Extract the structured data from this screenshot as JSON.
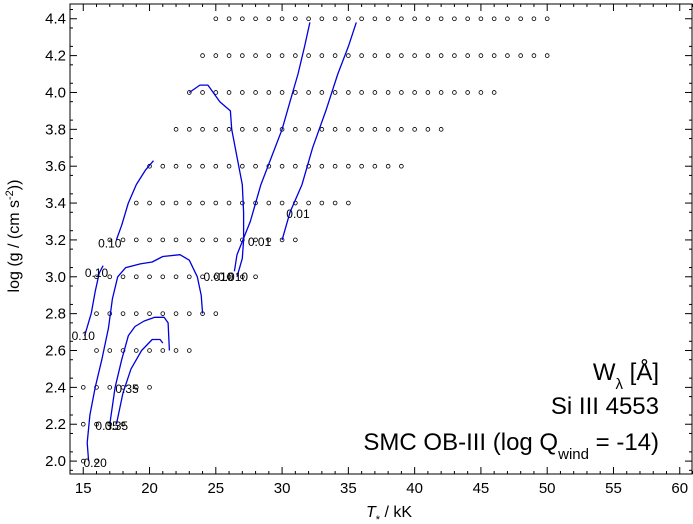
{
  "chart_data": {
    "type": "scatter",
    "xlabel_symbol": "T",
    "xlabel_subscript": "*",
    "xlabel_rest": " / kK",
    "ylabel_main": "log (g / (cm s",
    "ylabel_sup": "-2",
    "ylabel_end": "))",
    "xlim": [
      14,
      61
    ],
    "ylim": [
      1.93,
      4.48
    ],
    "xticks": [
      15,
      20,
      25,
      30,
      35,
      40,
      45,
      50,
      55,
      60
    ],
    "yticks": [
      2.0,
      2.2,
      2.4,
      2.6,
      2.8,
      3.0,
      3.2,
      3.4,
      3.6,
      3.8,
      4.0,
      4.2,
      4.4
    ],
    "grid": false,
    "annotation": {
      "line1_main": "W",
      "line1_sub": "λ",
      "line1_rest": "  [Å]",
      "line2": "Si III 4553",
      "line3_main": "SMC OB-III (log Q",
      "line3_sub": "wind",
      "line3_rest": " = -14)"
    },
    "grid_model_rows": [
      {
        "logg": 4.4,
        "teff": [
          25,
          26,
          27,
          28,
          29,
          30,
          31,
          32,
          33,
          34,
          35,
          36,
          37,
          38,
          39,
          40,
          41,
          42,
          43,
          44,
          45,
          46,
          47,
          48,
          49,
          50
        ]
      },
      {
        "logg": 4.2,
        "teff": [
          24,
          25,
          26,
          27,
          28,
          29,
          30,
          31,
          32,
          33,
          34,
          35,
          36,
          37,
          38,
          39,
          40,
          41,
          42,
          43,
          44,
          45,
          46,
          47,
          48,
          49,
          50
        ]
      },
      {
        "logg": 4.0,
        "teff": [
          23,
          24,
          25,
          26,
          27,
          28,
          29,
          30,
          31,
          32,
          33,
          34,
          35,
          36,
          37,
          38,
          39,
          40,
          41,
          42,
          43,
          44,
          45,
          46
        ]
      },
      {
        "logg": 3.8,
        "teff": [
          22,
          23,
          24,
          25,
          26,
          27,
          28,
          29,
          30,
          31,
          32,
          33,
          34,
          35,
          36,
          37,
          38,
          39,
          40,
          41,
          42
        ]
      },
      {
        "logg": 3.6,
        "teff": [
          20,
          21,
          22,
          23,
          24,
          25,
          26,
          27,
          28,
          29,
          30,
          31,
          32,
          33,
          34,
          35,
          36,
          37,
          38,
          39
        ]
      },
      {
        "logg": 3.4,
        "teff": [
          19,
          20,
          21,
          22,
          23,
          24,
          25,
          26,
          27,
          28,
          29,
          30,
          31,
          32,
          33,
          34,
          35
        ]
      },
      {
        "logg": 3.2,
        "teff": [
          17,
          18,
          19,
          20,
          21,
          22,
          23,
          24,
          25,
          26,
          27,
          28,
          29,
          30,
          31
        ]
      },
      {
        "logg": 3.0,
        "teff": [
          16,
          17,
          18,
          19,
          20,
          21,
          22,
          23,
          24,
          25,
          26,
          27,
          28
        ]
      },
      {
        "logg": 2.8,
        "teff": [
          16,
          17,
          18,
          19,
          20,
          21,
          22,
          23,
          24,
          25
        ]
      },
      {
        "logg": 2.6,
        "teff": [
          16,
          17,
          18,
          19,
          20,
          21,
          22,
          23
        ]
      },
      {
        "logg": 2.4,
        "teff": [
          15,
          16,
          17,
          18,
          19,
          20
        ]
      },
      {
        "logg": 2.2,
        "teff": [
          15,
          16,
          17,
          18
        ]
      },
      {
        "logg": 2.0,
        "teff": [
          15,
          16
        ]
      }
    ],
    "contours": [
      {
        "label": "0.01",
        "points": [
          [
            30.0,
            3.2
          ],
          [
            30.6,
            3.35
          ],
          [
            31.5,
            3.5
          ],
          [
            32.3,
            3.7
          ],
          [
            33.3,
            3.9
          ],
          [
            34.2,
            4.1
          ],
          [
            35.0,
            4.25
          ],
          [
            35.6,
            4.38
          ]
        ]
      },
      {
        "label": "0.01",
        "points": [
          [
            26.4,
            3.03
          ],
          [
            26.6,
            3.12
          ],
          [
            27.6,
            3.3
          ],
          [
            28.4,
            3.5
          ],
          [
            29.2,
            3.65
          ],
          [
            30.0,
            3.8
          ],
          [
            30.6,
            3.95
          ],
          [
            31.2,
            4.1
          ],
          [
            31.7,
            4.25
          ],
          [
            32.1,
            4.38
          ]
        ]
      },
      {
        "label": "0.01",
        "points": [
          [
            23.0,
            4.0
          ],
          [
            23.8,
            4.04
          ],
          [
            24.4,
            4.04
          ],
          [
            24.8,
            4.0
          ],
          [
            25.3,
            3.95
          ],
          [
            26.1,
            3.9
          ],
          [
            26.2,
            3.8
          ],
          [
            26.6,
            3.65
          ],
          [
            27.0,
            3.5
          ],
          [
            27.1,
            3.35
          ],
          [
            27.1,
            3.2
          ],
          [
            27.0,
            3.1
          ],
          [
            26.6,
            3.0
          ]
        ]
      },
      {
        "label": "0.10",
        "points": [
          [
            17.5,
            3.2
          ],
          [
            17.9,
            3.28
          ],
          [
            18.4,
            3.4
          ],
          [
            19.0,
            3.5
          ],
          [
            19.7,
            3.58
          ],
          [
            20.3,
            3.63
          ]
        ]
      },
      {
        "label": "0.10",
        "points": [
          [
            15.6,
            2.8
          ],
          [
            15.9,
            2.92
          ],
          [
            16.2,
            3.02
          ],
          [
            16.5,
            3.06
          ]
        ]
      },
      {
        "label": "0.10",
        "points": [
          [
            15.1,
            2.68
          ],
          [
            15.6,
            2.8
          ]
        ]
      },
      {
        "label": "0.20",
        "points": [
          [
            15.4,
            2.0
          ],
          [
            15.3,
            2.1
          ],
          [
            15.5,
            2.25
          ],
          [
            15.9,
            2.4
          ],
          [
            16.4,
            2.55
          ],
          [
            16.9,
            2.72
          ],
          [
            17.2,
            2.88
          ],
          [
            17.6,
            3.0
          ],
          [
            18.2,
            3.05
          ],
          [
            19.3,
            3.07
          ],
          [
            20.2,
            3.08
          ],
          [
            21.0,
            3.11
          ],
          [
            22.3,
            3.12
          ],
          [
            23.0,
            3.09
          ],
          [
            23.6,
            3.0
          ],
          [
            23.9,
            2.9
          ],
          [
            24.0,
            2.8
          ]
        ]
      },
      {
        "label": "0.35",
        "points": [
          [
            17.0,
            2.2
          ],
          [
            17.4,
            2.4
          ],
          [
            17.9,
            2.55
          ],
          [
            18.4,
            2.68
          ],
          [
            18.9,
            2.73
          ],
          [
            19.6,
            2.76
          ],
          [
            20.4,
            2.78
          ],
          [
            21.1,
            2.78
          ],
          [
            21.4,
            2.75
          ],
          [
            21.5,
            2.6
          ]
        ]
      },
      {
        "label": "0.35",
        "points": [
          [
            17.5,
            2.2
          ],
          [
            18.0,
            2.37
          ],
          [
            18.6,
            2.5
          ],
          [
            19.4,
            2.6
          ],
          [
            20.2,
            2.66
          ],
          [
            20.8,
            2.66
          ],
          [
            21.0,
            2.64
          ]
        ]
      }
    ],
    "contour_labels": [
      {
        "text": "0.01",
        "x": 31.2,
        "y": 3.34
      },
      {
        "text": "0.01",
        "x": 28.3,
        "y": 3.19
      },
      {
        "text": "0.010",
        "x": 26.3,
        "y": 3.0
      },
      {
        "text": "0.010",
        "x": 25.2,
        "y": 3.0
      },
      {
        "text": "0.10",
        "x": 17.0,
        "y": 3.18
      },
      {
        "text": "0.10",
        "x": 16.0,
        "y": 3.02
      },
      {
        "text": "0.10",
        "x": 15.0,
        "y": 2.68
      },
      {
        "text": "0.35",
        "x": 18.3,
        "y": 2.39
      },
      {
        "text": "0.35",
        "x": 17.5,
        "y": 2.19
      },
      {
        "text": "0.35",
        "x": 16.8,
        "y": 2.19
      },
      {
        "text": "0.20",
        "x": 15.9,
        "y": 1.99
      }
    ],
    "colors": {
      "contour": "#0000dd",
      "axis": "#000000",
      "marker": "#000000"
    }
  }
}
